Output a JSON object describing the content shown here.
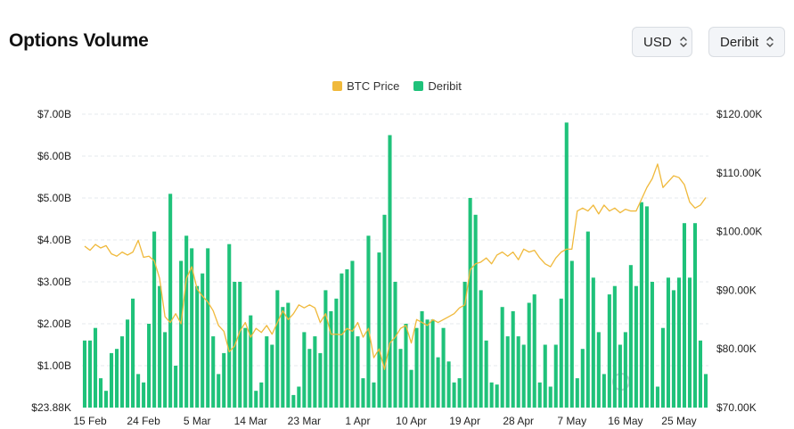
{
  "header": {
    "title": "Options Volume"
  },
  "controls": {
    "currency": "USD",
    "exchange": "Deribit"
  },
  "colors": {
    "btc": "#f0b93b",
    "deribit": "#1fc27a",
    "grid": "#e6e9ee"
  },
  "chart_data": {
    "type": "bar",
    "title": "Options Volume",
    "legend": [
      {
        "name": "BTC Price",
        "color": "#f0b93b"
      },
      {
        "name": "Deribit",
        "color": "#1fc27a"
      }
    ],
    "legend_position": "top-center",
    "grid": true,
    "x_tick_labels": [
      "15 Feb",
      "24 Feb",
      "5 Mar",
      "14 Mar",
      "23 Mar",
      "1 Apr",
      "10 Apr",
      "19 Apr",
      "28 Apr",
      "7 May",
      "16 May",
      "25 May"
    ],
    "y_left": {
      "ticks": [
        {
          "v": 0,
          "label": "$23.88K"
        },
        {
          "v": 1,
          "label": "$1.00B"
        },
        {
          "v": 2,
          "label": "$2.00B"
        },
        {
          "v": 3,
          "label": "$3.00B"
        },
        {
          "v": 4,
          "label": "$4.00B"
        },
        {
          "v": 5,
          "label": "$5.00B"
        },
        {
          "v": 6,
          "label": "$6.00B"
        },
        {
          "v": 7,
          "label": "$7.00B"
        }
      ],
      "ylim": [
        0,
        7
      ]
    },
    "y_right": {
      "ticks": [
        {
          "v": 70,
          "label": "$70.00K"
        },
        {
          "v": 80,
          "label": "$80.00K"
        },
        {
          "v": 90,
          "label": "$90.00K"
        },
        {
          "v": 100,
          "label": "$100.00K"
        },
        {
          "v": 110,
          "label": "$110.00K"
        },
        {
          "v": 120,
          "label": "$120.00K"
        }
      ],
      "ylim": [
        70,
        120
      ]
    },
    "series": [
      {
        "name": "Deribit",
        "type": "bar",
        "axis": "left",
        "unit": "USD billions",
        "values": [
          1.6,
          1.6,
          1.9,
          0.7,
          0.4,
          1.3,
          1.4,
          1.7,
          2.1,
          2.6,
          0.8,
          0.6,
          2.0,
          4.2,
          2.9,
          1.8,
          5.1,
          1.0,
          3.5,
          4.1,
          3.8,
          2.9,
          3.2,
          3.8,
          1.7,
          0.8,
          1.3,
          3.9,
          3.0,
          3.0,
          1.9,
          2.2,
          0.4,
          0.6,
          1.7,
          1.5,
          2.8,
          2.4,
          2.5,
          0.3,
          0.5,
          1.8,
          1.4,
          1.7,
          1.3,
          2.8,
          2.3,
          2.6,
          3.2,
          3.3,
          3.5,
          1.7,
          0.7,
          4.1,
          0.6,
          3.7,
          4.6,
          6.5,
          3.0,
          1.4,
          2.0,
          0.9,
          1.9,
          2.3,
          2.1,
          2.1,
          1.2,
          1.9,
          1.1,
          0.6,
          0.7,
          3.0,
          5.0,
          4.6,
          2.8,
          1.6,
          0.6,
          0.55,
          2.4,
          1.7,
          2.3,
          1.7,
          1.5,
          2.5,
          2.7,
          0.6,
          1.5,
          0.5,
          1.5,
          2.6,
          6.8,
          3.5,
          0.7,
          1.4,
          4.2,
          3.1,
          1.8,
          0.8,
          2.7,
          2.9,
          1.5,
          1.8,
          3.4,
          2.9,
          4.9,
          4.8,
          3.0,
          0.5,
          1.9,
          3.1,
          2.8,
          3.1,
          4.4,
          3.1,
          4.4,
          1.6,
          0.8
        ]
      },
      {
        "name": "BTC Price",
        "type": "line",
        "axis": "right",
        "unit": "USD thousands",
        "values": [
          97.5,
          96.8,
          97.8,
          97.2,
          97.6,
          96.2,
          95.8,
          96.5,
          96.0,
          96.5,
          98.5,
          95.6,
          95.8,
          95.0,
          92.0,
          85.5,
          84.5,
          86.0,
          84.3,
          92.0,
          94.0,
          90.2,
          89.0,
          88.0,
          86.5,
          84.0,
          83.0,
          79.5,
          80.5,
          83.0,
          84.5,
          82.0,
          83.5,
          82.8,
          84.0,
          82.5,
          84.5,
          86.5,
          85.0,
          86.0,
          87.5,
          87.0,
          87.5,
          87.0,
          84.5,
          86.0,
          82.5,
          82.5,
          82.4,
          83.5,
          83.0,
          84.5,
          82.0,
          83.5,
          78.5,
          80.0,
          76.5,
          81.0,
          82.0,
          83.5,
          84.0,
          81.0,
          85.0,
          84.5,
          84.0,
          85.0,
          84.5,
          85.0,
          85.5,
          86.0,
          87.0,
          87.5,
          93.5,
          94.5,
          94.8,
          95.5,
          94.5,
          96.0,
          96.5,
          95.8,
          96.5,
          95.2,
          97.0,
          96.5,
          96.8,
          95.5,
          94.5,
          94.0,
          95.5,
          96.5,
          97.0,
          97.0,
          103.5,
          104.0,
          103.5,
          104.5,
          103.0,
          104.5,
          103.5,
          104.0,
          103.2,
          103.8,
          103.5,
          103.5,
          105.5,
          107.5,
          109.0,
          111.5,
          107.5,
          108.5,
          109.5,
          109.2,
          108.0,
          105.0,
          104.0,
          104.5,
          105.8
        ]
      }
    ]
  }
}
